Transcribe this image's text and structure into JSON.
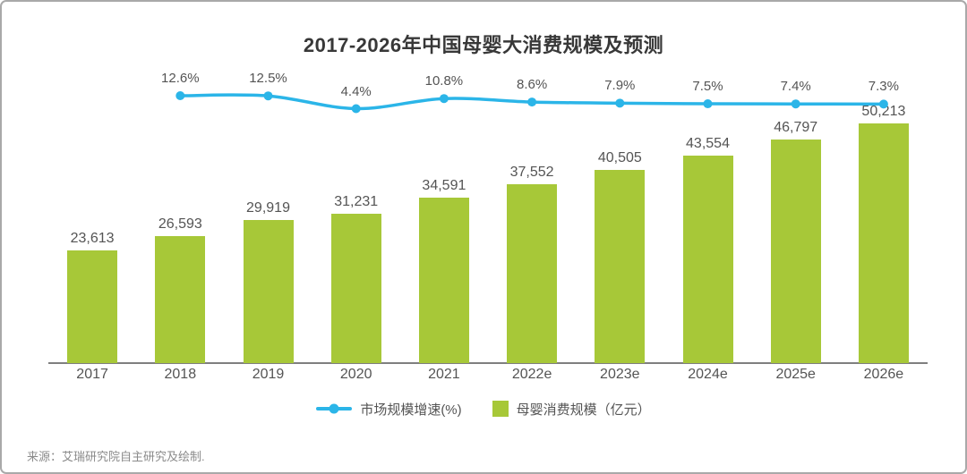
{
  "title": "2017-2026年中国母婴大消费规模及预测",
  "legend": {
    "line_label": "市场规模增速(%)",
    "bar_label": "母婴消费规模（亿元）"
  },
  "source": "来源：艾瑞研究院自主研究及绘制.",
  "colors": {
    "bar": "#a7c838",
    "line": "#2bb5e8",
    "title_text": "#383838",
    "label_text": "#545454",
    "axis_line": "#7f7f7f",
    "source_text": "#8a8a8a",
    "card_border": "#a9a9a9"
  },
  "chart_data": {
    "type": "bar+line",
    "title": "2017-2026年中国母婴大消费规模及预测",
    "categories": [
      "2017",
      "2018",
      "2019",
      "2020",
      "2021",
      "2022e",
      "2023e",
      "2024e",
      "2025e",
      "2026e"
    ],
    "series": [
      {
        "name": "母婴消费规模（亿元）",
        "type": "bar",
        "values": [
          23613,
          26593,
          29919,
          31231,
          34591,
          37552,
          40505,
          43554,
          46797,
          50213
        ],
        "labels": [
          "23,613",
          "26,593",
          "29,919",
          "31,231",
          "34,591",
          "37,552",
          "40,505",
          "43,554",
          "46,797",
          "50,213"
        ]
      },
      {
        "name": "市场规模增速(%)",
        "type": "line",
        "start_category_index": 1,
        "values": [
          12.6,
          12.5,
          4.4,
          10.8,
          8.6,
          7.9,
          7.5,
          7.4,
          7.3
        ],
        "labels": [
          "12.6%",
          "12.5%",
          "4.4%",
          "10.8%",
          "8.6%",
          "7.9%",
          "7.5%",
          "7.4%",
          "7.3%"
        ]
      }
    ],
    "xlabel": "",
    "ylabel": "",
    "grid": false,
    "y_axis_visible": false,
    "legend_position": "bottom"
  }
}
